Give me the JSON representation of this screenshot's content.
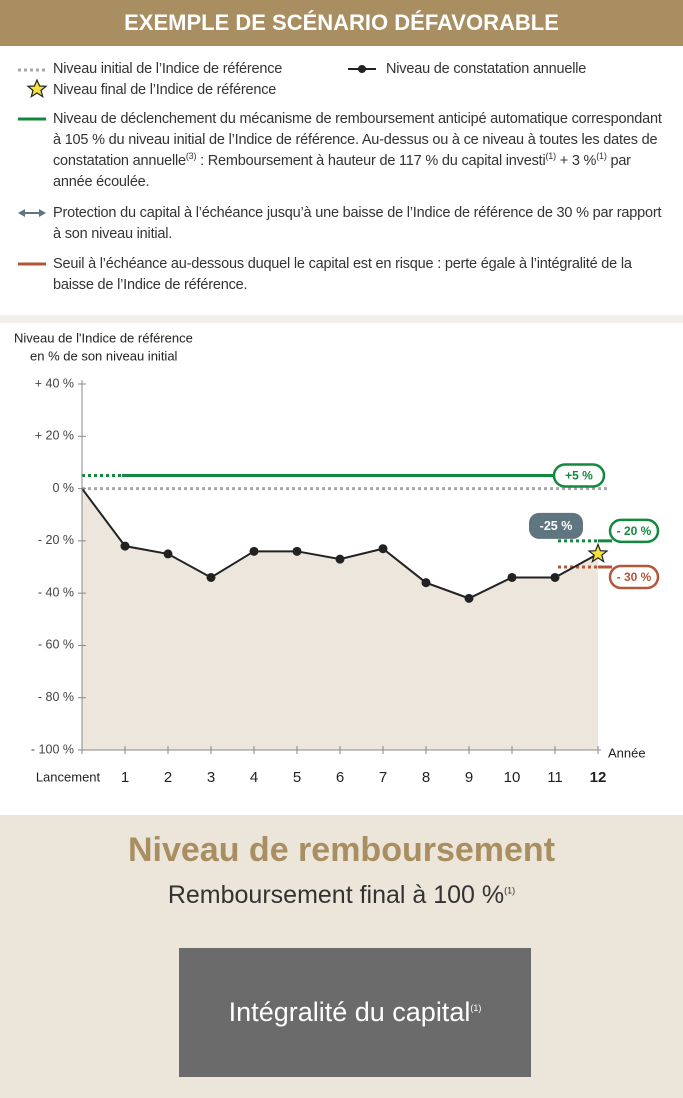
{
  "header": {
    "title": "EXEMPLE DE SCÉNARIO DÉFAVORABLE"
  },
  "legend": {
    "items": [
      {
        "parts": [
          "Niveau initial de l’Indice de référence"
        ]
      },
      {
        "parts": [
          "Niveau de constatation annuelle"
        ]
      },
      {
        "parts": [
          "Niveau final de l’Indice de référence"
        ]
      },
      {
        "parts": [
          "Niveau de déclenchement du mécanisme de remboursement anticipé automatique correspondant à 105 % du niveau initial de l’Indice de référence. Au-dessus ou à ce niveau à toutes les dates de constatation annuelle",
          "(3)",
          " : Remboursement à hauteur de 117 % du capital investi",
          "(1)",
          " + 3 %",
          "(1)",
          " par année écoulée."
        ]
      },
      {
        "parts": [
          "Protection du capital à l’échéance jusqu’à une baisse de l’Indice de référence de 30 % par rapport à son niveau initial."
        ]
      },
      {
        "parts": [
          "Seuil à l’échéance au-dessous duquel le capital est en risque : perte égale à l’intégralité de la baisse de l’Indice de référence."
        ]
      }
    ]
  },
  "chart_data": {
    "type": "line",
    "y_title": [
      "Niveau de l'Indice de référence",
      "en % de son niveau initial"
    ],
    "x_title": "Année",
    "categories": [
      "Lancement",
      "1",
      "2",
      "3",
      "4",
      "5",
      "6",
      "7",
      "8",
      "9",
      "10",
      "11",
      "12"
    ],
    "series": [
      {
        "name": "Niveau de constatation annuelle",
        "color": "#222222",
        "values": [
          0,
          -22,
          -25,
          -34,
          -24,
          -24,
          -27,
          -23,
          -36,
          -42,
          -34,
          -34,
          -25
        ],
        "value_labels": [
          null,
          null,
          null,
          null,
          null,
          null,
          null,
          null,
          null,
          null,
          null,
          null,
          "-25 %"
        ]
      }
    ],
    "final_marker_color": "#f3e33c",
    "area_color": "#ece6dd",
    "reference_lines": [
      {
        "value": 0,
        "color": "#a8a8a8",
        "extent": "full"
      },
      {
        "value": 5,
        "label": "+5 %",
        "color": "#13893f",
        "extent": "full"
      },
      {
        "value": -20,
        "label": "- 20 %",
        "color": "#13893f",
        "extent": "final"
      },
      {
        "value": -30,
        "label": "- 30 %",
        "color": "#b3573a",
        "extent": "final"
      }
    ],
    "ylim": [
      -100,
      40
    ],
    "yticks": [
      {
        "value": 40,
        "label": "+ 40 %"
      },
      {
        "value": 20,
        "label": "+ 20 %"
      },
      {
        "value": 0,
        "label": "0 %"
      },
      {
        "value": -20,
        "label": "- 20 %"
      },
      {
        "value": -40,
        "label": "- 40 %"
      },
      {
        "value": -60,
        "label": "- 60 %"
      },
      {
        "value": -80,
        "label": "- 80 %"
      },
      {
        "value": -100,
        "label": "- 100 %"
      }
    ]
  },
  "summary": {
    "title": "Niveau de remboursement",
    "subtitle": [
      "Remboursement final à 100 %",
      "(1)"
    ],
    "box": [
      "Intégralité du capital",
      "(1)"
    ]
  }
}
